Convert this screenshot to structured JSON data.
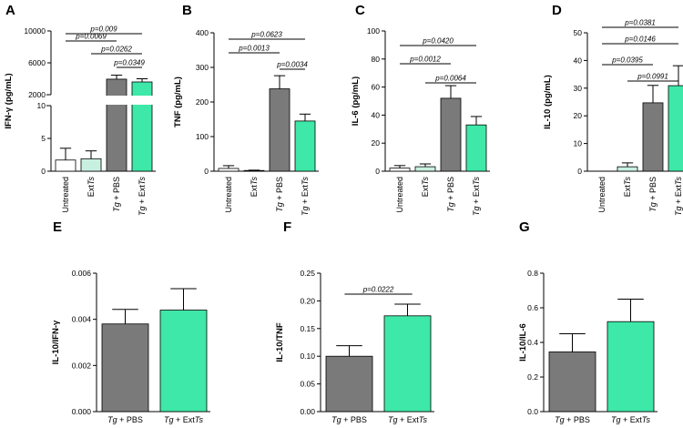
{
  "figure": {
    "background": "#ffffff"
  },
  "colors": {
    "white": "#ffffff",
    "light": "#c8f0e0",
    "gray": "#7a7a7a",
    "green": "#3ee8a8"
  },
  "chart_data": [
    {
      "id": "A",
      "type": "bar",
      "panel_label": "A",
      "ylabel": "IFN-γ (pg/mL)",
      "categories": [
        "Untreated",
        "ExtTs",
        "Tg + PBS",
        "Tg + ExtTs"
      ],
      "values": [
        1.7,
        1.9,
        3950,
        3600
      ],
      "errors": [
        1.8,
        1.2,
        500,
        400
      ],
      "colors": [
        "white",
        "light",
        "gray",
        "green"
      ],
      "broken_axis": true,
      "lower_ylim": [
        0,
        10
      ],
      "lower_ticks": [
        "0",
        "5",
        "10"
      ],
      "upper_ylim": [
        2000,
        10000
      ],
      "upper_ticks": [
        "2000",
        "6000",
        "10000"
      ],
      "comparisons": [
        {
          "from": 0,
          "to": 3,
          "label": "p=0.009"
        },
        {
          "from": 0,
          "to": 2,
          "label": "p=0.0069"
        },
        {
          "from": 1,
          "to": 3,
          "label": "p=0.0262"
        },
        {
          "from": 2,
          "to": 3,
          "label": "p=0.0349"
        }
      ]
    },
    {
      "id": "B",
      "type": "bar",
      "panel_label": "B",
      "ylabel": "TNF (pg/mL)",
      "categories": [
        "Untreated",
        "ExtTs",
        "Tg + PBS",
        "Tg + ExtTs"
      ],
      "values": [
        8,
        2,
        238,
        145
      ],
      "errors": [
        8,
        1,
        38,
        20
      ],
      "colors": [
        "white",
        "light",
        "gray",
        "green"
      ],
      "ylim": [
        0,
        400
      ],
      "ticks": [
        "0",
        "100",
        "200",
        "300",
        "400"
      ],
      "comparisons": [
        {
          "from": 0,
          "to": 3,
          "label": "p=0.0623"
        },
        {
          "from": 0,
          "to": 2,
          "label": "p=0.0013"
        },
        {
          "from": 2,
          "to": 3,
          "label": "p=0.0034"
        }
      ]
    },
    {
      "id": "C",
      "type": "bar",
      "panel_label": "C",
      "ylabel": "IL-6 (pg/mL)",
      "categories": [
        "Untreated",
        "ExtTs",
        "Tg + PBS",
        "Tg + ExtTs"
      ],
      "values": [
        2.2,
        3.2,
        52,
        33
      ],
      "errors": [
        1.8,
        2.0,
        9,
        6
      ],
      "colors": [
        "white",
        "light",
        "gray",
        "green"
      ],
      "ylim": [
        0,
        100
      ],
      "ticks": [
        "0",
        "20",
        "40",
        "60",
        "80",
        "100"
      ],
      "comparisons": [
        {
          "from": 0,
          "to": 3,
          "label": "p=0.0420"
        },
        {
          "from": 0,
          "to": 2,
          "label": "p=0.0012"
        },
        {
          "from": 1,
          "to": 3,
          "label": "p=0.0064"
        }
      ]
    },
    {
      "id": "D",
      "type": "bar",
      "panel_label": "D",
      "ylabel": "IL-10 (pg/mL)",
      "categories": [
        "Untreated",
        "ExtTs",
        "Tg + PBS",
        "Tg + ExtTs"
      ],
      "values": [
        0,
        1.6,
        24.7,
        30.9
      ],
      "errors": [
        0,
        1.4,
        6.3,
        7.2
      ],
      "colors": [
        "white",
        "light",
        "gray",
        "green"
      ],
      "ylim": [
        0,
        50
      ],
      "ticks": [
        "0",
        "10",
        "20",
        "30",
        "40",
        "50"
      ],
      "comparisons": [
        {
          "from": 0,
          "to": 3,
          "label": "p=0.0381"
        },
        {
          "from": 0,
          "to": 3,
          "label": "p=0.0146"
        },
        {
          "from": 0,
          "to": 2,
          "label": "p=0.0395"
        },
        {
          "from": 1,
          "to": 3,
          "label": "p=0.0991"
        }
      ]
    },
    {
      "id": "E",
      "type": "bar",
      "panel_label": "E",
      "ylabel": "IL-10/IFN-γ",
      "categories": [
        "Tg + PBS",
        "Tg + ExtTs"
      ],
      "values": [
        0.0038,
        0.0044
      ],
      "errors": [
        0.00063,
        0.00093
      ],
      "colors": [
        "gray",
        "green"
      ],
      "ylim": [
        0,
        0.006
      ],
      "ticks": [
        "0.000",
        "0.002",
        "0.004",
        "0.006"
      ],
      "comparisons": []
    },
    {
      "id": "F",
      "type": "bar",
      "panel_label": "F",
      "ylabel": "IL-10/TNF",
      "categories": [
        "Tg + PBS",
        "Tg + ExtTs"
      ],
      "values": [
        0.1,
        0.173
      ],
      "errors": [
        0.019,
        0.021
      ],
      "colors": [
        "gray",
        "green"
      ],
      "ylim": [
        0,
        0.25
      ],
      "ticks": [
        "0.00",
        "0.05",
        "0.10",
        "0.15",
        "0.20",
        "0.25"
      ],
      "comparisons": [
        {
          "from": 0,
          "to": 1,
          "label": "p=0.0222"
        }
      ]
    },
    {
      "id": "G",
      "type": "bar",
      "panel_label": "G",
      "ylabel": "IL-10/IL-6",
      "categories": [
        "Tg + PBS",
        "Tg + ExtTs"
      ],
      "values": [
        0.345,
        0.52
      ],
      "errors": [
        0.105,
        0.13
      ],
      "colors": [
        "gray",
        "green"
      ],
      "ylim": [
        0,
        0.8
      ],
      "ticks": [
        "0.0",
        "0.2",
        "0.4",
        "0.6",
        "0.8"
      ],
      "comparisons": []
    }
  ]
}
